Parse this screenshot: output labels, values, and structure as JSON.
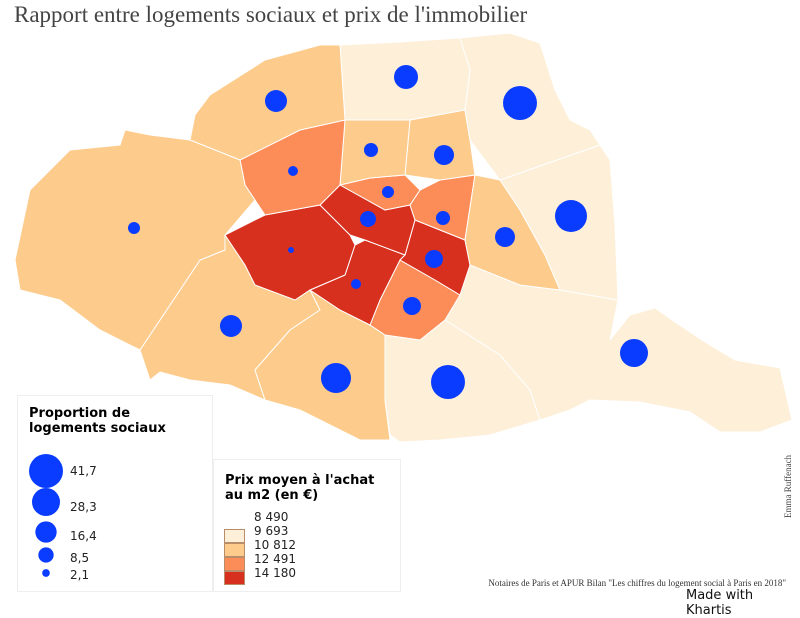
{
  "title": "Rapport entre logements sociaux et prix de l'immobilier",
  "colors": {
    "classes": [
      "#fdefd8",
      "#fdcb8b",
      "#fc8d59",
      "#d7301f"
    ],
    "circle": "#0a3cff",
    "border": "#ffffff"
  },
  "legend_circles": {
    "title": "Proportion de logements sociaux",
    "items": [
      {
        "label": "41,7",
        "value": 41.7
      },
      {
        "label": "28,3",
        "value": 28.3
      },
      {
        "label": "16,4",
        "value": 16.4
      },
      {
        "label": "8,5",
        "value": 8.5
      },
      {
        "label": "2,1",
        "value": 2.1
      }
    ]
  },
  "legend_price": {
    "title": "Prix moyen à l'achat au m2 (en €)",
    "breaks": [
      "8 490",
      "9 693",
      "10 812",
      "12 491",
      "14 180"
    ]
  },
  "districts": [
    {
      "id": "16",
      "class": 1,
      "social": 5.2
    },
    {
      "id": "17",
      "class": 1,
      "social": 17.5
    },
    {
      "id": "18",
      "class": 0,
      "social": 20.8
    },
    {
      "id": "19",
      "class": 0,
      "social": 41.7
    },
    {
      "id": "8",
      "class": 2,
      "social": 3.6
    },
    {
      "id": "9",
      "class": 1,
      "social": 7.1
    },
    {
      "id": "10",
      "class": 1,
      "social": 14.4
    },
    {
      "id": "20",
      "class": 0,
      "social": 37.0
    },
    {
      "id": "11",
      "class": 1,
      "social": 14.4
    },
    {
      "id": "2",
      "class": 2,
      "social": 5.2
    },
    {
      "id": "3",
      "class": 2,
      "social": 7.1
    },
    {
      "id": "1",
      "class": 3,
      "social": 9.2
    },
    {
      "id": "4",
      "class": 3,
      "social": 11.7
    },
    {
      "id": "7",
      "class": 3,
      "social": 1.3
    },
    {
      "id": "6",
      "class": 3,
      "social": 3.6
    },
    {
      "id": "5",
      "class": 2,
      "social": 11.7
    },
    {
      "id": "12",
      "class": 0,
      "social": 28.3
    },
    {
      "id": "13",
      "class": 0,
      "social": 41.7
    },
    {
      "id": "14",
      "class": 1,
      "social": 32.5
    },
    {
      "id": "15",
      "class": 1,
      "social": 17.5
    }
  ],
  "source": "Notaires de Paris et APUR Bilan \"Les chiffres du logement social à Paris en 2018\"",
  "made_with": "Made with Khartis",
  "author": "Emma Ruffenach"
}
